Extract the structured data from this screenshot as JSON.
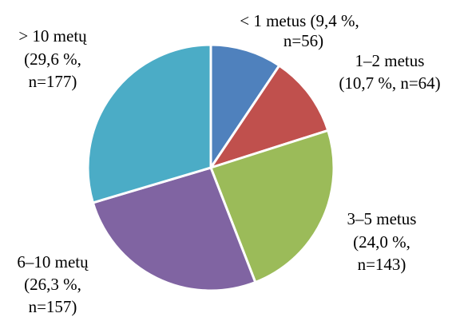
{
  "chart_data": {
    "type": "pie",
    "values": [
      9.4,
      10.7,
      24.0,
      26.3,
      29.6
    ],
    "value_labels": [
      [
        "< 1 metus (9,4 %,",
        "n=56)"
      ],
      [
        "1–2 metus",
        "(10,7 %, n=64)"
      ],
      [
        "3–5 metus",
        "(24,0 %,",
        "n=143)"
      ],
      [
        "6–10 metų",
        "(26,3 %,",
        "n=157)"
      ],
      [
        "> 10 metų",
        "(29,6 %,",
        "n=177)"
      ]
    ],
    "colors": [
      "#4f81bd",
      "#c0504d",
      "#9bbb59",
      "#8064a2",
      "#4bacc6"
    ]
  }
}
